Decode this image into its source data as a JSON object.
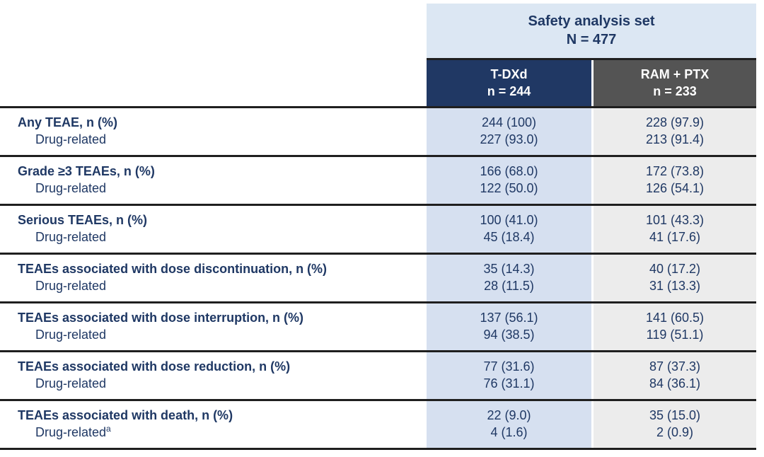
{
  "table": {
    "banner": {
      "title": "Safety analysis set",
      "n_label": "N = 477"
    },
    "columns": [
      {
        "label": "T-DXd",
        "sublabel": "n = 244"
      },
      {
        "label": "RAM + PTX",
        "sublabel": "n = 233"
      }
    ],
    "groups": [
      {
        "label": "Any TEAE, n (%)",
        "sublabel": "Drug-related",
        "values": [
          {
            "main": "244 (100)",
            "sub": "227 (93.0)"
          },
          {
            "main": "228 (97.9)",
            "sub": "213 (91.4)"
          }
        ]
      },
      {
        "label": "Grade ≥3 TEAEs, n (%)",
        "sublabel": "Drug-related",
        "values": [
          {
            "main": "166 (68.0)",
            "sub": "122 (50.0)"
          },
          {
            "main": "172 (73.8)",
            "sub": "126 (54.1)"
          }
        ]
      },
      {
        "label": "Serious TEAEs, n (%)",
        "sublabel": "Drug-related",
        "values": [
          {
            "main": "100 (41.0)",
            "sub": "45 (18.4)"
          },
          {
            "main": "101 (43.3)",
            "sub": "41 (17.6)"
          }
        ]
      },
      {
        "label": "TEAEs associated with dose discontinuation, n (%)",
        "sublabel": "Drug-related",
        "values": [
          {
            "main": "35 (14.3)",
            "sub": "28 (11.5)"
          },
          {
            "main": "40 (17.2)",
            "sub": "31 (13.3)"
          }
        ]
      },
      {
        "label": "TEAEs associated with dose interruption, n (%)",
        "sublabel": "Drug-related",
        "values": [
          {
            "main": "137 (56.1)",
            "sub": "94 (38.5)"
          },
          {
            "main": "141 (60.5)",
            "sub": "119 (51.1)"
          }
        ]
      },
      {
        "label": "TEAEs associated with dose reduction, n (%)",
        "sublabel": "Drug-related",
        "values": [
          {
            "main": "77 (31.6)",
            "sub": "76 (31.1)"
          },
          {
            "main": "87 (37.3)",
            "sub": "84 (36.1)"
          }
        ]
      },
      {
        "label": "TEAEs associated with death, n (%)",
        "sublabel": "Drug-related",
        "sublabel_footnote": "a",
        "values": [
          {
            "main": "22 (9.0)",
            "sub": "4 (1.6)"
          },
          {
            "main": "35 (15.0)",
            "sub": "2 (0.9)"
          }
        ]
      }
    ]
  },
  "colors": {
    "banner_bg": "#dce7f3",
    "tdxd_header_bg": "#203864",
    "ram_header_bg": "#545454",
    "tdxd_column_bg": "#d6e0f0",
    "ram_column_bg": "#ececec",
    "text_navy": "#1f3864",
    "header_text": "#ffffff",
    "rule_line": "#1f1f1f"
  }
}
